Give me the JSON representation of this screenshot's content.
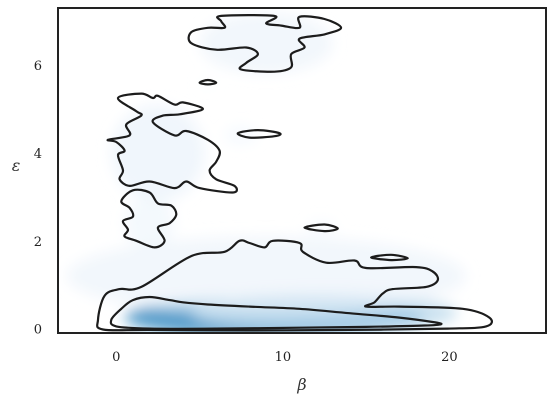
{
  "chart_data": {
    "type": "kde_contour",
    "title": "",
    "xlabel": "β",
    "ylabel": "ε",
    "xlim": [
      -3.5,
      25.8
    ],
    "ylim": [
      -0.1,
      7.3
    ],
    "xticks": [
      0,
      10,
      20
    ],
    "yticks": [
      0,
      2,
      4,
      6
    ],
    "grid": false,
    "legend": "none",
    "colormap": "Blues",
    "colors": {
      "contour_line": "#1c1c1c",
      "density_peak": "#08519c",
      "frame": "#222222"
    },
    "density_blobs": [
      {
        "cx": 6.5,
        "cy": 0.22,
        "rx": 4.5,
        "ry": 0.22,
        "level": 1.0
      },
      {
        "cx": 9.5,
        "cy": 0.25,
        "rx": 9.0,
        "ry": 0.45,
        "level": 0.55
      },
      {
        "cx": 12.5,
        "cy": 0.35,
        "rx": 8.0,
        "ry": 0.45,
        "level": 0.25
      },
      {
        "cx": 9.0,
        "cy": 1.2,
        "rx": 12.0,
        "ry": 0.9,
        "level": 0.08
      },
      {
        "cx": 2.5,
        "cy": 4.0,
        "rx": 2.8,
        "ry": 1.1,
        "level": 0.09
      },
      {
        "cx": 2.0,
        "cy": 2.4,
        "rx": 1.5,
        "ry": 0.6,
        "level": 0.06
      },
      {
        "cx": 9.0,
        "cy": 6.5,
        "rx": 4.0,
        "ry": 0.7,
        "level": 0.08
      },
      {
        "cx": 7.5,
        "cy": 4.4,
        "rx": 1.0,
        "ry": 0.2,
        "level": 0.04
      },
      {
        "cx": 12.3,
        "cy": 2.3,
        "rx": 0.9,
        "ry": 0.15,
        "level": 0.04
      },
      {
        "cx": 16.4,
        "cy": 1.62,
        "rx": 0.8,
        "ry": 0.12,
        "level": 0.04
      },
      {
        "cx": 5.5,
        "cy": 5.6,
        "rx": 0.4,
        "ry": 0.08,
        "level": 0.03
      }
    ],
    "contours": [
      {
        "level": "outer",
        "points": [
          [
            -1.1,
            0.2
          ],
          [
            -0.7,
            0.75
          ],
          [
            0.2,
            0.9
          ],
          [
            1.5,
            0.95
          ],
          [
            4.5,
            1.65
          ],
          [
            6.5,
            1.75
          ],
          [
            7.4,
            2.0
          ],
          [
            8.0,
            1.95
          ],
          [
            8.9,
            1.85
          ],
          [
            9.4,
            2.0
          ],
          [
            11.0,
            1.95
          ],
          [
            11.2,
            1.75
          ],
          [
            12.6,
            1.5
          ],
          [
            14.3,
            1.55
          ],
          [
            15.0,
            1.38
          ],
          [
            18.0,
            1.4
          ],
          [
            19.0,
            1.3
          ],
          [
            19.3,
            1.1
          ],
          [
            18.6,
            0.95
          ],
          [
            16.6,
            0.9
          ],
          [
            16.0,
            0.8
          ],
          [
            15.5,
            0.6
          ],
          [
            15.0,
            0.5
          ],
          [
            17.0,
            0.5
          ],
          [
            20.8,
            0.45
          ],
          [
            22.4,
            0.25
          ],
          [
            22.2,
            0.05
          ],
          [
            19.9,
            0.0
          ],
          [
            14.0,
            -0.03
          ],
          [
            8.0,
            -0.04
          ],
          [
            2.0,
            -0.03
          ],
          [
            -0.8,
            -0.02
          ]
        ]
      },
      {
        "level": "inner",
        "points": [
          [
            -0.3,
            0.2
          ],
          [
            0.3,
            0.45
          ],
          [
            1.0,
            0.65
          ],
          [
            2.0,
            0.72
          ],
          [
            3.2,
            0.65
          ],
          [
            4.0,
            0.6
          ],
          [
            5.5,
            0.55
          ],
          [
            8.0,
            0.5
          ],
          [
            11.0,
            0.45
          ],
          [
            14.0,
            0.35
          ],
          [
            17.0,
            0.25
          ],
          [
            19.0,
            0.15
          ],
          [
            19.5,
            0.1
          ],
          [
            18.5,
            0.07
          ],
          [
            15.0,
            0.04
          ],
          [
            11.0,
            0.02
          ],
          [
            6.0,
            0.0
          ],
          [
            2.0,
            0.0
          ],
          [
            0.0,
            0.05
          ]
        ]
      },
      {
        "level": "outer",
        "points": [
          [
            0.1,
            5.25
          ],
          [
            1.5,
            5.35
          ],
          [
            2.2,
            5.25
          ],
          [
            2.5,
            5.3
          ],
          [
            3.5,
            5.1
          ],
          [
            4.0,
            5.15
          ],
          [
            5.2,
            5.0
          ],
          [
            3.8,
            4.88
          ],
          [
            2.8,
            4.85
          ],
          [
            2.2,
            4.7
          ],
          [
            3.5,
            4.4
          ],
          [
            4.2,
            4.5
          ],
          [
            5.5,
            4.3
          ],
          [
            6.2,
            4.05
          ],
          [
            6.0,
            3.8
          ],
          [
            5.6,
            3.6
          ],
          [
            6.0,
            3.4
          ],
          [
            7.1,
            3.25
          ],
          [
            7.0,
            3.1
          ],
          [
            5.0,
            3.2
          ],
          [
            4.2,
            3.35
          ],
          [
            3.5,
            3.2
          ],
          [
            2.0,
            3.35
          ],
          [
            0.8,
            3.25
          ],
          [
            0.2,
            3.4
          ],
          [
            0.4,
            3.6
          ],
          [
            0.1,
            3.95
          ],
          [
            0.5,
            4.05
          ],
          [
            0.0,
            4.25
          ],
          [
            -0.5,
            4.3
          ],
          [
            0.8,
            4.4
          ],
          [
            0.6,
            4.65
          ],
          [
            1.5,
            4.85
          ],
          [
            1.2,
            4.95
          ]
        ]
      },
      {
        "level": "outer",
        "points": [
          [
            0.3,
            2.9
          ],
          [
            1.0,
            3.15
          ],
          [
            2.0,
            3.1
          ],
          [
            2.5,
            2.85
          ],
          [
            3.3,
            2.8
          ],
          [
            3.6,
            2.6
          ],
          [
            3.2,
            2.4
          ],
          [
            2.5,
            2.3
          ],
          [
            2.9,
            2.0
          ],
          [
            2.3,
            1.85
          ],
          [
            1.2,
            2.0
          ],
          [
            0.5,
            2.1
          ],
          [
            0.7,
            2.25
          ],
          [
            0.4,
            2.45
          ],
          [
            1.0,
            2.55
          ],
          [
            0.8,
            2.75
          ]
        ]
      },
      {
        "level": "outer",
        "points": [
          [
            4.5,
            6.75
          ],
          [
            5.5,
            6.85
          ],
          [
            6.5,
            6.85
          ],
          [
            6.3,
            7.0
          ],
          [
            6.3,
            7.12
          ],
          [
            9.5,
            7.12
          ],
          [
            9.0,
            6.95
          ],
          [
            9.9,
            6.9
          ],
          [
            11.0,
            6.85
          ],
          [
            11.0,
            7.1
          ],
          [
            12.5,
            7.05
          ],
          [
            13.5,
            6.85
          ],
          [
            12.5,
            6.7
          ],
          [
            11.0,
            6.6
          ],
          [
            11.3,
            6.4
          ],
          [
            10.5,
            6.25
          ],
          [
            10.5,
            5.95
          ],
          [
            9.5,
            5.85
          ],
          [
            7.5,
            5.9
          ],
          [
            7.8,
            6.05
          ],
          [
            8.5,
            6.25
          ],
          [
            7.8,
            6.4
          ],
          [
            6.0,
            6.35
          ],
          [
            4.5,
            6.5
          ]
        ]
      },
      {
        "level": "outer",
        "points": [
          [
            7.3,
            4.45
          ],
          [
            8.5,
            4.52
          ],
          [
            9.8,
            4.45
          ],
          [
            9.5,
            4.38
          ],
          [
            8.0,
            4.35
          ]
        ]
      },
      {
        "level": "outer",
        "points": [
          [
            11.3,
            2.3
          ],
          [
            12.5,
            2.37
          ],
          [
            13.3,
            2.28
          ],
          [
            12.5,
            2.22
          ]
        ]
      },
      {
        "level": "outer",
        "points": [
          [
            15.3,
            1.62
          ],
          [
            16.5,
            1.68
          ],
          [
            17.5,
            1.6
          ],
          [
            16.5,
            1.56
          ]
        ]
      },
      {
        "level": "outer",
        "points": [
          [
            5.0,
            5.6
          ],
          [
            5.5,
            5.66
          ],
          [
            6.0,
            5.6
          ],
          [
            5.5,
            5.56
          ]
        ]
      }
    ]
  }
}
